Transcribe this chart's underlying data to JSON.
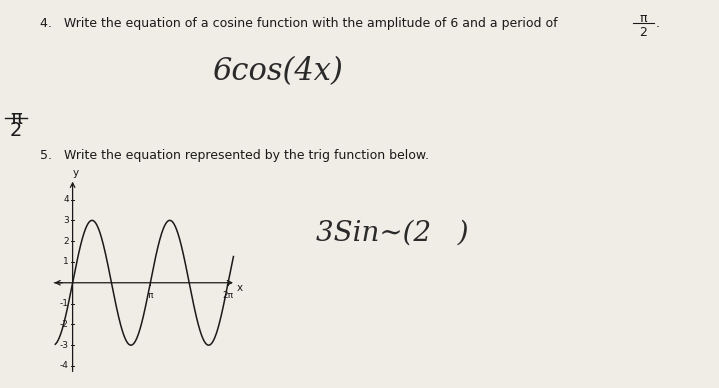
{
  "bg_color": "#e8e4df",
  "paper_color": "#f0ece6",
  "text_color": "#1a1a1a",
  "q4_text": "4.   Write the equation of a cosine function with the amplitude of 6 and a period of",
  "q4_fraction_num": "π",
  "q4_fraction_den": "2",
  "q4_answer": "6cos(4x)",
  "q4_side_num": "π",
  "q4_side_den": "2",
  "q5_text": "5.   Write the equation represented by the trig function below.",
  "q5_answer_part1": "3Sin∼(2",
  "q5_answer_part2": ")",
  "graph_xlim": [
    -0.9,
    6.8
  ],
  "graph_ylim": [
    -4.5,
    5.2
  ],
  "graph_y_ticks": [
    -4,
    -3,
    -2,
    -1,
    1,
    2,
    3,
    4
  ],
  "amplitude": 3,
  "freq": 2,
  "font_size_main": 9,
  "font_size_answer": 22,
  "font_size_side": 14
}
